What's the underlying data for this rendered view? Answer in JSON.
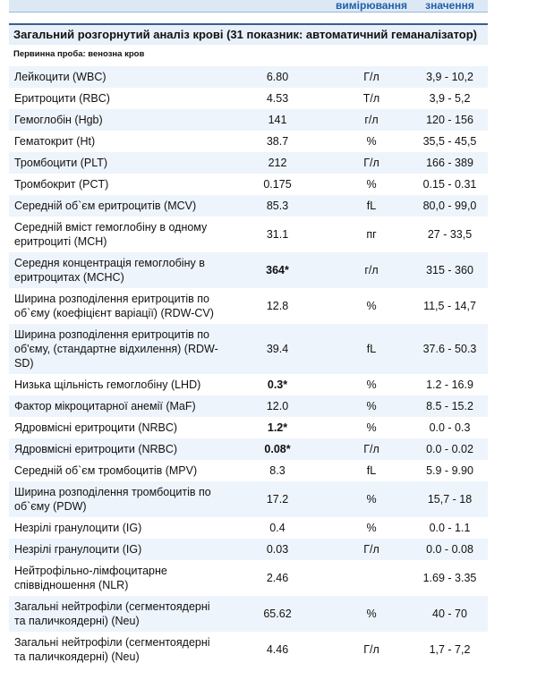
{
  "header": {
    "columns": [
      "вимірювання",
      "значення"
    ]
  },
  "section": {
    "title": "Загальний розгорнутий аналіз крові (31 показник: автоматичний геманалізатор)",
    "subtitle": "Первинна проба: венозна кров"
  },
  "table": {
    "rows": [
      {
        "name": "Лейкоцити (WBC)",
        "value": "6.80",
        "unit": "Г/л",
        "range": "3,9 - 10,2"
      },
      {
        "name": "Еритроцити (RBC)",
        "value": "4.53",
        "unit": "Т/л",
        "range": "3,9 - 5,2"
      },
      {
        "name": "Гемоглобін (Hgb)",
        "value": "141",
        "unit": "г/л",
        "range": "120 - 156"
      },
      {
        "name": "Гематокрит (Ht)",
        "value": "38.7",
        "unit": "%",
        "range": "35,5 - 45,5"
      },
      {
        "name": "Тромбоцити (PLT)",
        "value": "212",
        "unit": "Г/л",
        "range": "166 - 389"
      },
      {
        "name": "Тромбокрит (PCT)",
        "value": "0.175",
        "unit": "%",
        "range": "0.15 - 0.31"
      },
      {
        "name": "Середній об`єм еритроцитів (MCV)",
        "value": "85.3",
        "unit": "fL",
        "range": "80,0 - 99,0"
      },
      {
        "name": "Середній вміст гемоглобіну в одному еритроциті (MCH)",
        "value": "31.1",
        "unit": "пг",
        "range": "27 - 33,5"
      },
      {
        "name": "Середня концентрація гемоглобіну в еритроцитах (MCHC)",
        "value": "364*",
        "bold": true,
        "unit": "г/л",
        "range": "315 - 360"
      },
      {
        "name": "Ширина розподілення еритроцитів по об`єму (коефіцієнт варіації) (RDW-CV)",
        "value": "12.8",
        "unit": "%",
        "range": "11,5 - 14,7"
      },
      {
        "name": "Ширина розподілення еритроцитів по об'єму, (стандартне відхилення) (RDW-SD)",
        "value": "39.4",
        "unit": "fL",
        "range": "37.6 - 50.3"
      },
      {
        "name": "Низька щільність гемоглобіну (LHD)",
        "value": "0.3*",
        "bold": true,
        "unit": "%",
        "range": "1.2 - 16.9"
      },
      {
        "name": "Фактор мікроцитарної анемії (MaF)",
        "value": "12.0",
        "unit": "%",
        "range": "8.5 - 15.2"
      },
      {
        "name": "Ядровмісні еритроцити (NRBC)",
        "value": "1.2*",
        "bold": true,
        "unit": "%",
        "range": "0.0 - 0.3"
      },
      {
        "name": "Ядровмісні еритроцити (NRBC)",
        "value": "0.08*",
        "bold": true,
        "unit": "Г/л",
        "range": "0.0 - 0.02"
      },
      {
        "name": "Середній об`єм тромбоцитів (MPV)",
        "value": "8.3",
        "unit": "fL",
        "range": "5.9 - 9.90"
      },
      {
        "name": "Ширина розподілення тромбоцитів по об`єму (PDW)",
        "value": "17.2",
        "unit": "%",
        "range": "15,7 - 18"
      },
      {
        "name": "Незрілі гранулоцити (IG)",
        "value": "0.4",
        "unit": "%",
        "range": "0.0 - 1.1"
      },
      {
        "name": "Незрілі гранулоцити (IG)",
        "value": "0.03",
        "unit": "Г/л",
        "range": "0.0 - 0.08"
      },
      {
        "name": "Нейтрофільно-лімфоцитарне співвідношення (NLR)",
        "value": "2.46",
        "range": "1.69 - 3.35"
      },
      {
        "name": "Загальні нейтрофіли (сегментоядерні та паличкоядерні) (Neu)",
        "value": "65.62",
        "unit": "%",
        "range": "40 - 70"
      },
      {
        "name": "Загальні нейтрофіли (сегментоядерні та паличкоядерні) (Neu)",
        "value": "4.46",
        "unit": "Г/л",
        "range": "1,7 - 7,2"
      }
    ]
  }
}
